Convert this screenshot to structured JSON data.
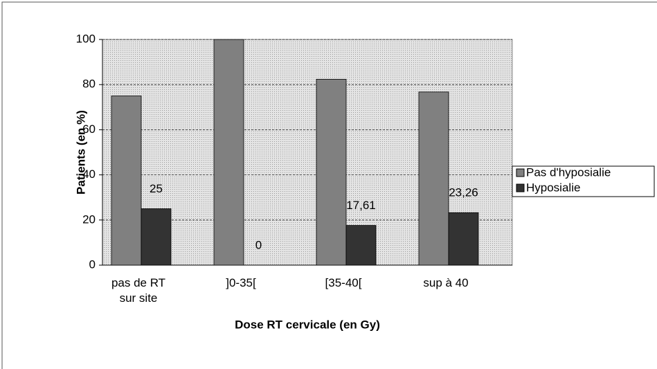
{
  "chart_data": {
    "type": "bar",
    "x_label": "Dose RT cervicale (en Gy)",
    "y_label": "Patients (en %)",
    "categories": [
      "pas de RT sur site",
      "]0-35[",
      "[35-40[",
      "sup à 40"
    ],
    "series": [
      {
        "name": "Pas d'hyposialie",
        "color": "#808080",
        "values": [
          75,
          100,
          82.39,
          76.74
        ]
      },
      {
        "name": "Hyposialie",
        "color": "#333333",
        "values": [
          25,
          0,
          17.61,
          23.26
        ],
        "value_labels": [
          "25",
          "0",
          "17,61",
          "23,26"
        ]
      }
    ],
    "ylim": [
      0,
      100
    ],
    "yticks": [
      0,
      20,
      40,
      60,
      80,
      100
    ],
    "grid": true,
    "legend": "right"
  }
}
